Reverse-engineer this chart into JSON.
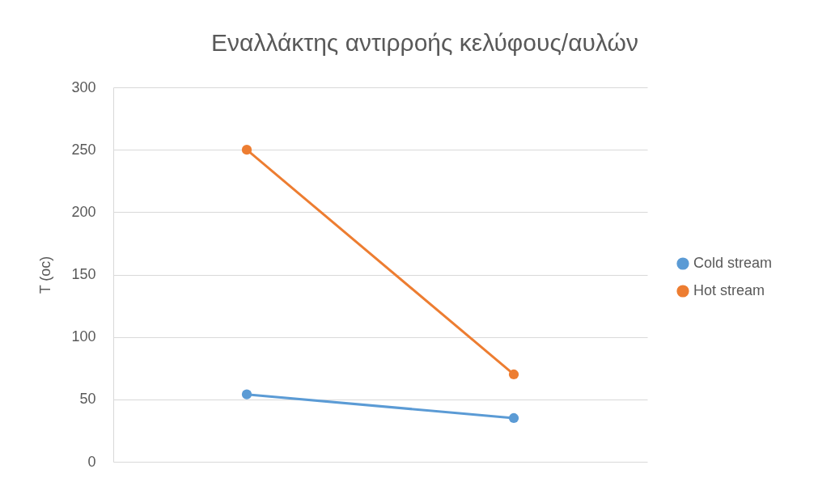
{
  "chart_data": {
    "type": "line",
    "title": "Εναλλάκτης αντιρροής κελύφους/αυλών",
    "ylabel": "T (oc)",
    "categories": [
      null,
      null
    ],
    "series": [
      {
        "name": "Cold stream",
        "color": "#5b9bd5",
        "values": [
          54,
          35
        ]
      },
      {
        "name": "Hot stream",
        "color": "#ed7d31",
        "values": [
          250,
          70
        ]
      }
    ],
    "ylim": [
      0,
      300
    ],
    "yticks": [
      0,
      50,
      100,
      150,
      200,
      250,
      300
    ],
    "grid": "y",
    "legend": "right",
    "marker": "circle",
    "line_style": "solid",
    "tick_labels": "y"
  }
}
